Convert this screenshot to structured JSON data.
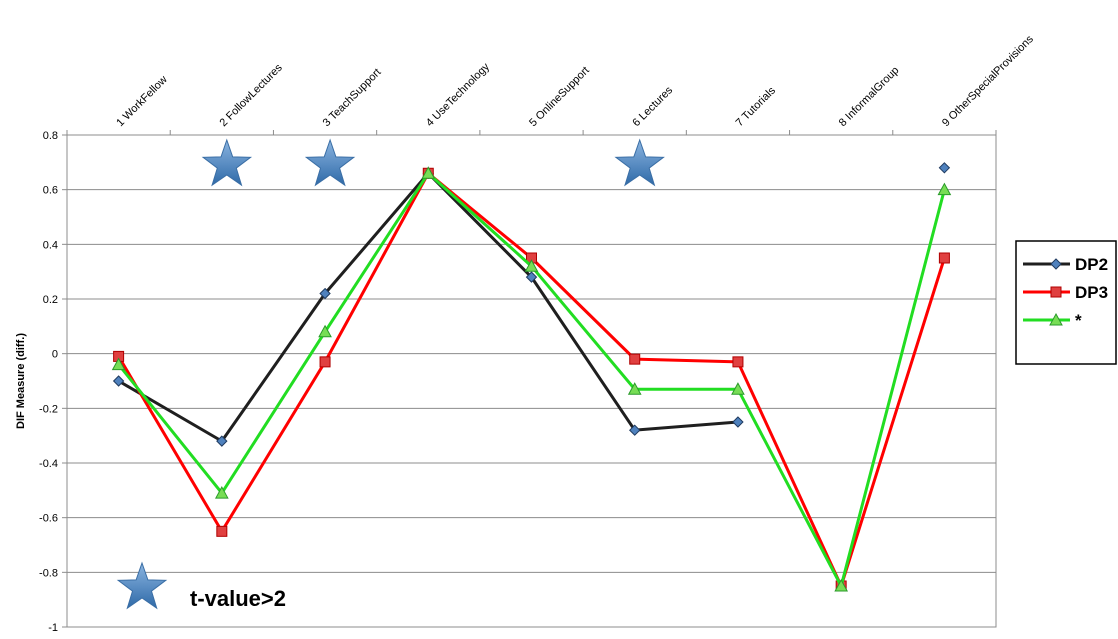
{
  "chart_data": {
    "type": "line",
    "ylabel": "DIF Measure (diff.)",
    "ylim": [
      -1,
      0.8
    ],
    "yticks": [
      0.8,
      0.6,
      0.4,
      0.2,
      0,
      -0.2,
      -0.4,
      -0.6,
      -0.8,
      -1
    ],
    "ytick_labels": [
      "0.8",
      "0.6",
      "0.4",
      "0.2",
      "0",
      "-0.2",
      "-0.4",
      "-0.6",
      "-0.8",
      "-1"
    ],
    "categories": [
      "1 WorkFellow",
      "2 FollowLectures",
      "3 TeachSupport",
      "4 UseTechnology",
      "5 OnlineSupport",
      "6 Lectures",
      "7 Tutorials",
      "8 InformalGroup",
      "9 OtherSpecialProvisions"
    ],
    "grid": true,
    "legend": "right",
    "series": [
      {
        "name": "DP2",
        "color": "#1f1f1f",
        "marker": "diamond",
        "marker_fill": "#4f81bd",
        "values": [
          -0.1,
          -0.32,
          0.22,
          0.66,
          0.28,
          -0.28,
          -0.25,
          null,
          0.68
        ]
      },
      {
        "name": "DP3",
        "color": "#ff0000",
        "marker": "square",
        "marker_fill": "#e04040",
        "values": [
          -0.01,
          -0.65,
          -0.03,
          0.66,
          0.35,
          -0.02,
          -0.03,
          -0.85,
          0.35
        ]
      },
      {
        "name": "*",
        "color": "#22dd22",
        "marker": "triangle",
        "marker_fill": "#77dd55",
        "values": [
          -0.04,
          -0.51,
          0.08,
          0.66,
          0.32,
          -0.13,
          -0.13,
          -0.85,
          0.6
        ]
      }
    ],
    "significance_marker": "star",
    "significant_categories": [
      "2 FollowLectures",
      "3 TeachSupport",
      "6 Lectures"
    ],
    "annotation": "t-value>2"
  }
}
